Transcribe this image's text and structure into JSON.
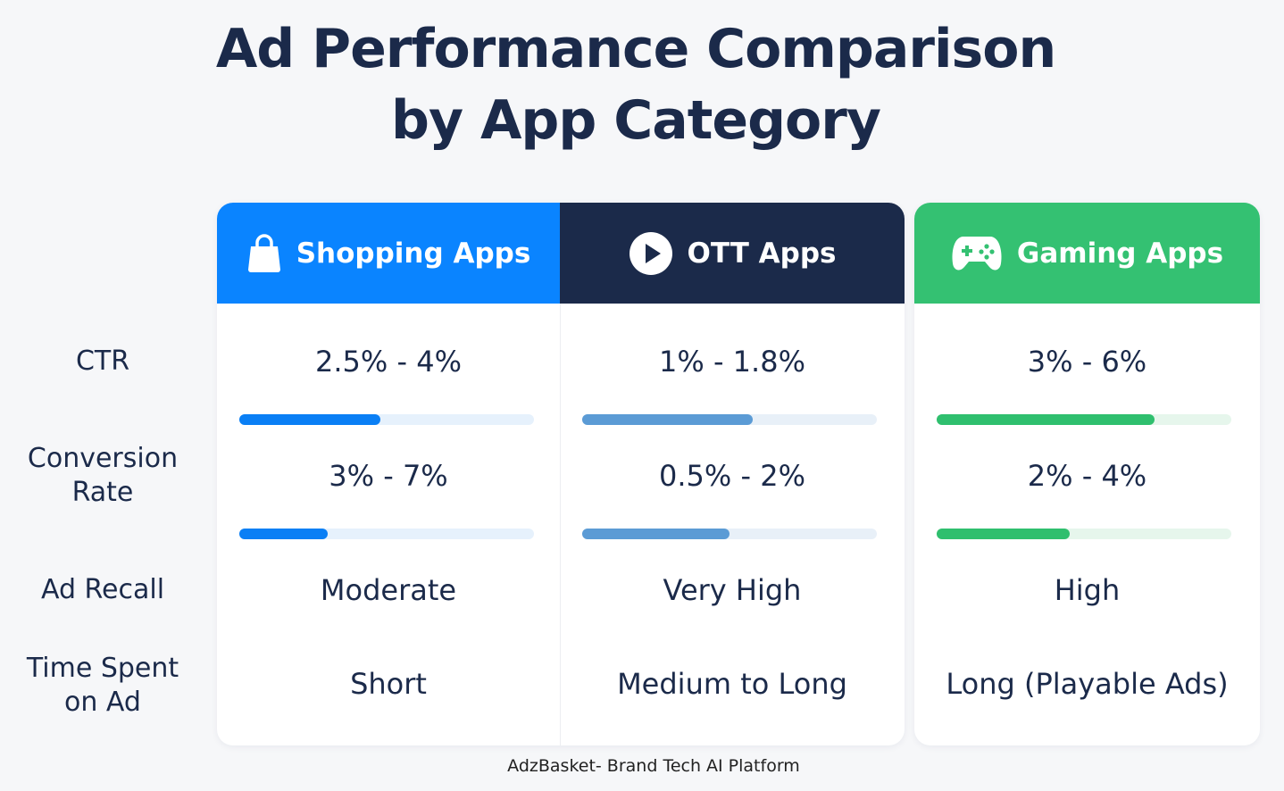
{
  "title_lines": [
    "Ad Performance Comparison",
    "by App Category"
  ],
  "row_labels": [
    "CTR",
    "Conversion Rate",
    "Ad Recall",
    "Time Spent on Ad"
  ],
  "columns": [
    {
      "name": "Shopping Apps",
      "header_color": "#0a84ff",
      "bar_color": "#0a7ff5",
      "track_color": "#e6f1fc",
      "ctr": "2.5% - 4%",
      "ctr_bar": 0.48,
      "conversion": "3% - 7%",
      "conversion_bar": 0.3,
      "ad_recall": "Moderate",
      "time_spent": "Short"
    },
    {
      "name": "OTT Apps",
      "header_color": "#1b2a4a",
      "bar_color": "#5b9bd5",
      "track_color": "#e8f0f8",
      "ctr": "1% - 1.8%",
      "ctr_bar": 0.58,
      "conversion": "0.5% - 2%",
      "conversion_bar": 0.5,
      "ad_recall": "Very High",
      "time_spent": "Medium to Long"
    },
    {
      "name": "Gaming Apps",
      "header_color": "#34c172",
      "bar_color": "#2fbf6e",
      "track_color": "#e6f6ec",
      "ctr": "3% - 6%",
      "ctr_bar": 0.74,
      "conversion": "2% - 4%",
      "conversion_bar": 0.45,
      "ad_recall": "High",
      "time_spent": "Long (Playable Ads)"
    }
  ],
  "footer": "AdzBasket- Brand Tech AI Platform"
}
